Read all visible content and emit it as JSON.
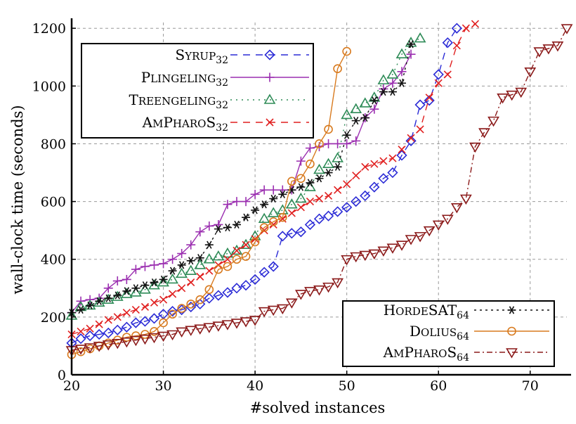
{
  "chart_data": {
    "type": "line",
    "title": "",
    "xlabel": "#solved instances",
    "ylabel": "wall-clock time (seconds)",
    "xlim": [
      20,
      74
    ],
    "ylim": [
      0,
      1220
    ],
    "xticks": [
      20,
      30,
      40,
      50,
      60,
      70
    ],
    "yticks": [
      0,
      200,
      400,
      600,
      800,
      1000,
      1200
    ],
    "grid": true,
    "legends": [
      {
        "position": "top-left",
        "entries": [
          0,
          1,
          2,
          3
        ]
      },
      {
        "position": "bottom-right",
        "entries": [
          4,
          5,
          6
        ]
      }
    ],
    "series": [
      {
        "name": "Syrup",
        "sub": "32",
        "color": "#2b2bd6",
        "marker": "diamond",
        "dash": "10,8",
        "x": [
          20,
          21,
          22,
          23,
          24,
          25,
          26,
          27,
          28,
          29,
          30,
          31,
          32,
          33,
          34,
          35,
          36,
          37,
          38,
          39,
          40,
          41,
          42,
          43,
          44,
          45,
          46,
          47,
          48,
          49,
          50,
          51,
          52,
          53,
          54,
          55,
          56,
          57,
          58,
          59,
          60,
          61,
          62
        ],
        "y": [
          110,
          125,
          135,
          140,
          145,
          155,
          165,
          180,
          185,
          195,
          210,
          220,
          225,
          235,
          245,
          265,
          275,
          285,
          300,
          310,
          330,
          355,
          375,
          480,
          490,
          495,
          520,
          540,
          550,
          565,
          580,
          600,
          620,
          650,
          680,
          700,
          760,
          810,
          935,
          950,
          1040,
          1150,
          1200
        ]
      },
      {
        "name": "Plingeling",
        "sub": "32",
        "color": "#9b2fb0",
        "marker": "plus",
        "dash": "",
        "x": [
          20,
          21,
          22,
          23,
          24,
          25,
          26,
          27,
          28,
          29,
          30,
          31,
          32,
          33,
          34,
          35,
          36,
          37,
          38,
          39,
          40,
          41,
          42,
          43,
          44,
          45,
          46,
          47,
          48,
          49,
          50,
          51,
          52,
          53,
          54,
          55,
          56,
          57
        ],
        "y": [
          215,
          255,
          260,
          265,
          300,
          325,
          330,
          365,
          375,
          380,
          385,
          400,
          420,
          450,
          495,
          515,
          520,
          590,
          600,
          600,
          625,
          640,
          640,
          640,
          640,
          740,
          785,
          790,
          800,
          800,
          800,
          810,
          890,
          920,
          990,
          1010,
          1050,
          1110
        ]
      },
      {
        "name": "Treengeling",
        "sub": "32",
        "color": "#2e8b57",
        "marker": "triangle-up",
        "dash": "2,6",
        "x": [
          20,
          21,
          22,
          23,
          24,
          25,
          26,
          27,
          28,
          29,
          30,
          31,
          32,
          33,
          34,
          35,
          36,
          37,
          38,
          39,
          40,
          41,
          42,
          43,
          44,
          45,
          46,
          47,
          48,
          49,
          50,
          51,
          52,
          53,
          54,
          55,
          56,
          57,
          58
        ],
        "y": [
          205,
          235,
          240,
          250,
          260,
          270,
          280,
          285,
          295,
          310,
          320,
          330,
          350,
          360,
          380,
          400,
          410,
          420,
          430,
          450,
          480,
          540,
          560,
          570,
          590,
          610,
          650,
          710,
          730,
          750,
          900,
          920,
          940,
          960,
          1020,
          1040,
          1110,
          1150,
          1165
        ]
      },
      {
        "name": "AmPharoS",
        "sub": "32",
        "color": "#e01f1f",
        "marker": "x",
        "dash": "10,8",
        "x": [
          20,
          21,
          22,
          23,
          24,
          25,
          26,
          27,
          28,
          29,
          30,
          31,
          32,
          33,
          34,
          35,
          36,
          37,
          38,
          39,
          40,
          41,
          42,
          43,
          44,
          45,
          46,
          47,
          48,
          49,
          50,
          51,
          52,
          53,
          54,
          55,
          56,
          57,
          58,
          59,
          60,
          61,
          62,
          63,
          64
        ],
        "y": [
          140,
          150,
          160,
          175,
          190,
          200,
          215,
          225,
          235,
          250,
          260,
          280,
          300,
          320,
          340,
          360,
          380,
          400,
          430,
          450,
          470,
          500,
          520,
          540,
          560,
          580,
          600,
          610,
          620,
          640,
          660,
          690,
          720,
          730,
          740,
          750,
          780,
          820,
          850,
          960,
          1010,
          1040,
          1140,
          1200,
          1215
        ]
      },
      {
        "name": "HordeSAT",
        "sub": "64",
        "color": "#111111",
        "marker": "asterisk",
        "dash": "3,5",
        "x": [
          20,
          21,
          22,
          23,
          24,
          25,
          26,
          27,
          28,
          29,
          30,
          31,
          32,
          33,
          34,
          35,
          36,
          37,
          38,
          39,
          40,
          41,
          42,
          43,
          44,
          45,
          46,
          47,
          48,
          49,
          50,
          51,
          52,
          53,
          54,
          55,
          56,
          57
        ],
        "y": [
          215,
          225,
          240,
          255,
          265,
          275,
          290,
          300,
          310,
          320,
          330,
          360,
          380,
          395,
          405,
          450,
          505,
          510,
          520,
          545,
          570,
          590,
          610,
          625,
          640,
          650,
          665,
          680,
          700,
          720,
          830,
          880,
          890,
          950,
          980,
          980,
          1010,
          1145
        ]
      },
      {
        "name": "Dolius",
        "sub": "64",
        "color": "#d87a1e",
        "marker": "circle",
        "dash": "",
        "x": [
          20,
          21,
          22,
          23,
          24,
          25,
          26,
          27,
          28,
          29,
          30,
          31,
          32,
          33,
          34,
          35,
          36,
          37,
          38,
          39,
          40,
          41,
          42,
          43,
          44,
          45,
          46,
          47,
          48,
          49,
          50
        ],
        "y": [
          70,
          80,
          90,
          100,
          110,
          120,
          130,
          135,
          140,
          150,
          180,
          210,
          230,
          245,
          260,
          295,
          365,
          375,
          400,
          410,
          460,
          510,
          530,
          545,
          670,
          680,
          730,
          800,
          850,
          1060,
          1120
        ]
      },
      {
        "name": "AmPharoS",
        "sub": "64",
        "color": "#8b1a1a",
        "marker": "triangle-down",
        "dash": "8,4,2,4",
        "x": [
          20,
          21,
          22,
          23,
          24,
          25,
          26,
          27,
          28,
          29,
          30,
          31,
          32,
          33,
          34,
          35,
          36,
          37,
          38,
          39,
          40,
          41,
          42,
          43,
          44,
          45,
          46,
          47,
          48,
          49,
          50,
          51,
          52,
          53,
          54,
          55,
          56,
          57,
          58,
          59,
          60,
          61,
          62,
          63,
          64,
          65,
          66,
          67,
          68,
          69,
          70,
          71,
          72,
          73,
          74
        ],
        "y": [
          85,
          90,
          95,
          100,
          105,
          110,
          115,
          120,
          125,
          130,
          135,
          140,
          150,
          155,
          160,
          165,
          170,
          175,
          180,
          185,
          190,
          220,
          225,
          230,
          250,
          280,
          290,
          295,
          305,
          320,
          400,
          410,
          415,
          420,
          430,
          440,
          450,
          470,
          480,
          500,
          520,
          540,
          580,
          610,
          790,
          840,
          880,
          960,
          970,
          980,
          1050,
          1120,
          1130,
          1140,
          1200
        ]
      }
    ]
  }
}
